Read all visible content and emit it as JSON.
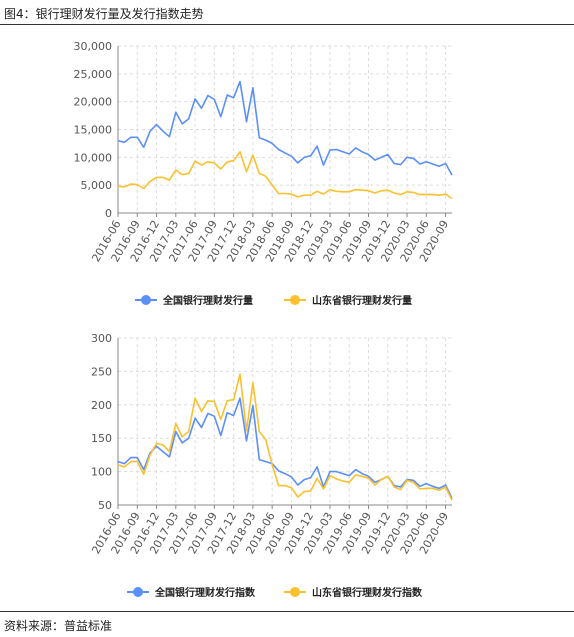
{
  "header": {
    "title": "图4：银行理财发行量及发行指数走势"
  },
  "footer": {
    "source": "资料来源：普益标准"
  },
  "colors": {
    "national": "#5b8ff9",
    "shandong": "#fbc02d",
    "grid": "#dddddd",
    "axis": "#888888"
  },
  "chart_data": [
    {
      "type": "line",
      "title": "",
      "xlabel": "",
      "ylabel": "",
      "ylim": [
        0,
        30000
      ],
      "yticks": [
        "0",
        "5,000",
        "10,000",
        "15,000",
        "20,000",
        "25,000",
        "30,000"
      ],
      "grid": true,
      "legend": "bottom-center",
      "x": [
        "2016-06",
        "2016-07",
        "2016-08",
        "2016-09",
        "2016-10",
        "2016-11",
        "2016-12",
        "2017-01",
        "2017-02",
        "2017-03",
        "2017-04",
        "2017-05",
        "2017-06",
        "2017-07",
        "2017-08",
        "2017-09",
        "2017-10",
        "2017-11",
        "2017-12",
        "2018-01",
        "2018-02",
        "2018-03",
        "2018-04",
        "2018-05",
        "2018-06",
        "2018-07",
        "2018-08",
        "2018-09",
        "2018-10",
        "2018-11",
        "2018-12",
        "2019-01",
        "2019-02",
        "2019-03",
        "2019-04",
        "2019-05",
        "2019-06",
        "2019-07",
        "2019-08",
        "2019-09",
        "2019-10",
        "2019-11",
        "2019-12",
        "2020-01",
        "2020-02",
        "2020-03",
        "2020-04",
        "2020-05",
        "2020-06",
        "2020-07",
        "2020-08",
        "2020-09",
        "2020-10"
      ],
      "xticks": [
        "2016-06",
        "2016-09",
        "2016-12",
        "2017-03",
        "2017-06",
        "2017-09",
        "2017-12",
        "2018-03",
        "2018-06",
        "2018-09",
        "2018-12",
        "2019-03",
        "2019-06",
        "2019-09",
        "2019-12",
        "2020-03",
        "2020-06",
        "2020-09"
      ],
      "series": [
        {
          "name": "全国银行理财发行量",
          "values": [
            13000,
            12700,
            13600,
            13600,
            11800,
            14700,
            15900,
            14700,
            13700,
            18100,
            16000,
            16900,
            20500,
            18800,
            21100,
            20400,
            17300,
            21200,
            20700,
            23600,
            16400,
            22500,
            13500,
            13100,
            12500,
            11400,
            10800,
            10200,
            9000,
            10000,
            10300,
            12000,
            8600,
            11300,
            11400,
            11000,
            10600,
            11700,
            11000,
            10500,
            9500,
            10000,
            10500,
            8900,
            8700,
            10000,
            9800,
            8800,
            9200,
            8800,
            8400,
            8900,
            6800
          ]
        },
        {
          "name": "山东省银行理财发行量",
          "values": [
            4800,
            4700,
            5200,
            5100,
            4400,
            5700,
            6400,
            6400,
            5900,
            7700,
            6900,
            7100,
            9300,
            8600,
            9200,
            9000,
            7900,
            9200,
            9400,
            11000,
            7400,
            10400,
            7100,
            6600,
            5000,
            3500,
            3500,
            3400,
            2900,
            3200,
            3200,
            3900,
            3400,
            4200,
            3900,
            3800,
            3800,
            4200,
            4100,
            4000,
            3600,
            4000,
            4100,
            3600,
            3300,
            3800,
            3700,
            3300,
            3300,
            3300,
            3200,
            3400,
            2600
          ]
        }
      ]
    },
    {
      "type": "line",
      "title": "",
      "xlabel": "",
      "ylabel": "",
      "ylim": [
        50,
        300
      ],
      "yticks": [
        "50",
        "100",
        "150",
        "200",
        "250",
        "300"
      ],
      "grid": true,
      "legend": "bottom-center",
      "x": [
        "2016-06",
        "2016-07",
        "2016-08",
        "2016-09",
        "2016-10",
        "2016-11",
        "2016-12",
        "2017-01",
        "2017-02",
        "2017-03",
        "2017-04",
        "2017-05",
        "2017-06",
        "2017-07",
        "2017-08",
        "2017-09",
        "2017-10",
        "2017-11",
        "2017-12",
        "2018-01",
        "2018-02",
        "2018-03",
        "2018-04",
        "2018-05",
        "2018-06",
        "2018-07",
        "2018-08",
        "2018-09",
        "2018-10",
        "2018-11",
        "2018-12",
        "2019-01",
        "2019-02",
        "2019-03",
        "2019-04",
        "2019-05",
        "2019-06",
        "2019-07",
        "2019-08",
        "2019-09",
        "2019-10",
        "2019-11",
        "2019-12",
        "2020-01",
        "2020-02",
        "2020-03",
        "2020-04",
        "2020-05",
        "2020-06",
        "2020-07",
        "2020-08",
        "2020-09",
        "2020-10"
      ],
      "xticks": [
        "2016-06",
        "2016-09",
        "2016-12",
        "2017-03",
        "2017-06",
        "2017-09",
        "2017-12",
        "2018-03",
        "2018-06",
        "2018-09",
        "2018-12",
        "2019-03",
        "2019-06",
        "2019-09",
        "2019-12",
        "2020-03",
        "2020-06",
        "2020-09"
      ],
      "series": [
        {
          "name": "全国银行理财发行指数",
          "values": [
            115,
            112,
            121,
            121,
            103,
            128,
            138,
            130,
            122,
            160,
            143,
            150,
            180,
            166,
            187,
            183,
            154,
            188,
            184,
            210,
            146,
            199,
            118,
            115,
            112,
            101,
            97,
            92,
            80,
            88,
            91,
            107,
            77,
            100,
            100,
            97,
            94,
            103,
            97,
            93,
            84,
            88,
            93,
            79,
            77,
            88,
            87,
            78,
            82,
            78,
            75,
            80,
            60
          ]
        },
        {
          "name": "山东省银行理财发行指数",
          "values": [
            110,
            107,
            115,
            115,
            96,
            125,
            142,
            140,
            130,
            172,
            152,
            160,
            210,
            190,
            206,
            205,
            178,
            206,
            208,
            246,
            161,
            233,
            160,
            148,
            110,
            79,
            79,
            76,
            62,
            70,
            71,
            90,
            74,
            94,
            89,
            86,
            84,
            95,
            93,
            90,
            80,
            88,
            93,
            77,
            73,
            87,
            84,
            74,
            75,
            75,
            72,
            77,
            57
          ]
        }
      ]
    }
  ]
}
